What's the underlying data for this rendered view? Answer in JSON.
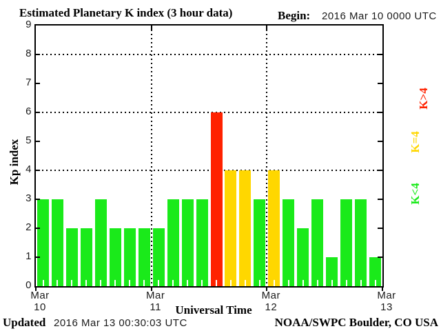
{
  "title": "Estimated Planetary K index (3 hour data)",
  "begin": {
    "label": "Begin:",
    "value": "2016 Mar 10 0000 UTC"
  },
  "y_axis": {
    "title": "Kp index",
    "ticks": [
      0,
      1,
      2,
      3,
      4,
      5,
      6,
      7,
      8,
      9
    ]
  },
  "x_axis": {
    "title": "Universal Time",
    "day_labels": [
      "Mar 10",
      "Mar 11",
      "Mar 12",
      "Mar 13"
    ]
  },
  "legend": [
    {
      "label": "K>4",
      "color": "#FF2200"
    },
    {
      "label": "K=4",
      "color": "#FFD700"
    },
    {
      "label": "K<4",
      "color": "#1AEA1A"
    }
  ],
  "footer": {
    "updated_label": "Updated",
    "updated_value": "2016 Mar 13 00:30:03 UTC",
    "credit": "NOAA/SWPC Boulder, CO USA"
  },
  "chart_data": {
    "type": "bar",
    "title": "Estimated Planetary K index (3 hour data)",
    "xlabel": "Universal Time",
    "ylabel": "Kp index",
    "ylim": [
      0,
      9
    ],
    "yticks": [
      0,
      1,
      2,
      3,
      4,
      5,
      6,
      7,
      8,
      9
    ],
    "gridlines_y": [
      4,
      6,
      8
    ],
    "interval_hours": 3,
    "start": "2016 Mar 10 0000 UTC",
    "day_labels": [
      "Mar 10",
      "Mar 11",
      "Mar 12",
      "Mar 13"
    ],
    "day_gridlines": [
      "Mar 11",
      "Mar 12"
    ],
    "values": [
      3,
      3,
      2,
      2,
      3,
      2,
      2,
      2,
      2,
      3,
      3,
      3,
      6,
      4,
      4,
      3,
      4,
      3,
      2,
      3,
      1,
      3,
      3,
      1
    ],
    "bar_colors_rule": {
      "k_lt_4": "#1AEA1A",
      "k_eq_4": "#FFD700",
      "k_gt_4": "#FF2200"
    },
    "color_rule_text": "green K<4, yellow K=4, red K>4",
    "legend_position": "right"
  }
}
